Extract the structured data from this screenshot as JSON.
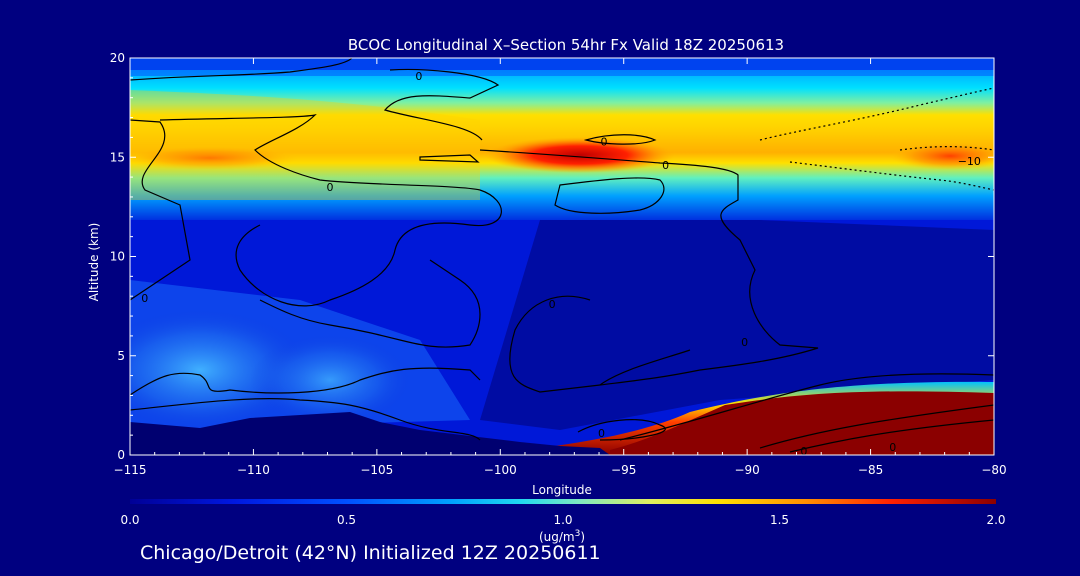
{
  "chart_data": {
    "type": "heatmap",
    "title": "BCOC Longitudinal X–Section 54hr  Fx Valid 18Z 20250613",
    "xlabel": "Longitude",
    "ylabel": "Altitude (km)",
    "xlim": [
      -115,
      -80
    ],
    "ylim": [
      0,
      20
    ],
    "x_ticks": [
      -115,
      -110,
      -105,
      -100,
      -95,
      -90,
      -85,
      -80
    ],
    "x_tick_labels": [
      "−115",
      "−110",
      "−105",
      "−100",
      "−95",
      "−90",
      "−85",
      "−80"
    ],
    "y_ticks": [
      0,
      5,
      10,
      15,
      20
    ],
    "y_tick_labels": [
      "0",
      "5",
      "10",
      "15",
      "20"
    ],
    "colorbar": {
      "min": 0.0,
      "max": 2.0,
      "ticks": [
        0.0,
        0.5,
        1.0,
        1.5,
        2.0
      ],
      "tick_labels": [
        "0.0",
        "0.5",
        "1.0",
        "1.5",
        "2.0"
      ],
      "label_main": "(ug/m",
      "label_sup": "3",
      "label_tail": ")"
    },
    "contour_labels": [
      {
        "text": "0",
        "x": -103.3,
        "y": 19.1
      },
      {
        "text": "0",
        "x": -106.9,
        "y": 13.5
      },
      {
        "text": "0",
        "x": -95.8,
        "y": 15.8
      },
      {
        "text": "0",
        "x": -93.3,
        "y": 14.6
      },
      {
        "text": "0",
        "x": -97.9,
        "y": 7.6
      },
      {
        "text": "0",
        "x": -114.4,
        "y": 7.9
      },
      {
        "text": "0",
        "x": -90.1,
        "y": 5.7
      },
      {
        "text": "0",
        "x": -95.9,
        "y": 1.1
      },
      {
        "text": "0",
        "x": -87.7,
        "y": 0.2
      },
      {
        "text": "0",
        "x": -84.1,
        "y": 0.4
      },
      {
        "text": "−10",
        "x": -81.0,
        "y": 14.8
      }
    ]
  },
  "footer": "Chicago/Detroit (42°N) Initialized 12Z 20250611"
}
